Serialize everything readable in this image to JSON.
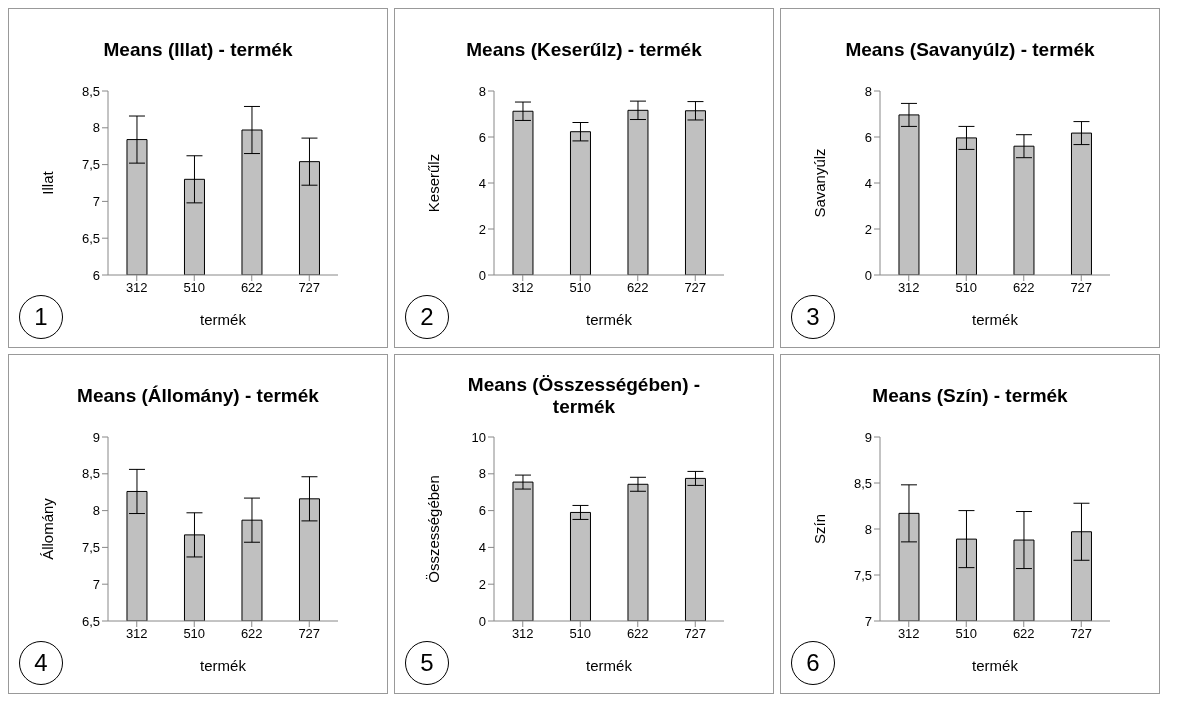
{
  "chart_data": [
    {
      "type": "bar",
      "title": "Means (Illat) - termék",
      "xlabel": "termék",
      "ylabel": "Illat",
      "categories": [
        "312",
        "510",
        "622",
        "727"
      ],
      "values": [
        7.84,
        7.3,
        7.97,
        7.54
      ],
      "errors": [
        0.32,
        0.32,
        0.32,
        0.32
      ],
      "color": "#c0c0c0",
      "ylim": [
        6,
        8.5
      ],
      "yticks": [
        6,
        {
          "value": 6.5,
          "label": "6,5"
        },
        7,
        {
          "value": 7.5,
          "label": "7,5"
        },
        8,
        {
          "value": 8.5,
          "label": "8,5"
        }
      ],
      "annotations": [
        "1"
      ]
    },
    {
      "type": "bar",
      "title": "Means (Keserűlz) - termék",
      "xlabel": "termék",
      "ylabel": "Keserűlz",
      "categories": [
        "312",
        "510",
        "622",
        "727"
      ],
      "values": [
        7.12,
        6.23,
        7.16,
        7.14
      ],
      "errors": [
        0.4,
        0.4,
        0.4,
        0.4
      ],
      "color": "#c0c0c0",
      "ylim": [
        0,
        8
      ],
      "yticks": [
        0,
        2,
        4,
        6,
        8
      ],
      "annotations": [
        "2"
      ]
    },
    {
      "type": "bar",
      "title": "Means (Savanyúlz) - termék",
      "xlabel": "termék",
      "ylabel": "Savanyúlz",
      "categories": [
        "312",
        "510",
        "622",
        "727"
      ],
      "values": [
        6.96,
        5.96,
        5.6,
        6.17
      ],
      "errors": [
        0.5,
        0.5,
        0.5,
        0.5
      ],
      "color": "#c0c0c0",
      "ylim": [
        0,
        8
      ],
      "yticks": [
        0,
        2,
        4,
        6,
        8
      ],
      "annotations": [
        "3"
      ]
    },
    {
      "type": "bar",
      "title": "Means (Állomány) - termék",
      "xlabel": "termék",
      "ylabel": "Állomány",
      "categories": [
        "312",
        "510",
        "622",
        "727"
      ],
      "values": [
        8.26,
        7.67,
        7.87,
        8.16
      ],
      "errors": [
        0.3,
        0.3,
        0.3,
        0.3
      ],
      "color": "#c0c0c0",
      "ylim": [
        6.5,
        9
      ],
      "yticks": [
        {
          "value": 6.5,
          "label": "6,5"
        },
        7,
        {
          "value": 7.5,
          "label": "7,5"
        },
        8,
        {
          "value": 8.5,
          "label": "8,5"
        },
        9
      ],
      "annotations": [
        "4"
      ]
    },
    {
      "type": "bar",
      "title": "Means (Összességében) - termék",
      "xlabel": "termék",
      "ylabel": "Összességében",
      "categories": [
        "312",
        "510",
        "622",
        "727"
      ],
      "values": [
        7.55,
        5.9,
        7.43,
        7.75
      ],
      "errors": [
        0.38,
        0.38,
        0.38,
        0.38
      ],
      "color": "#c0c0c0",
      "ylim": [
        0,
        10
      ],
      "yticks": [
        0,
        2,
        4,
        6,
        8,
        10
      ],
      "annotations": [
        "5"
      ]
    },
    {
      "type": "bar",
      "title": "Means (Szín) - termék",
      "xlabel": "termék",
      "ylabel": "Szín",
      "categories": [
        "312",
        "510",
        "622",
        "727"
      ],
      "values": [
        8.17,
        7.89,
        7.88,
        7.97
      ],
      "errors": [
        0.31,
        0.31,
        0.31,
        0.31
      ],
      "color": "#c0c0c0",
      "ylim": [
        7,
        9
      ],
      "yticks": [
        7,
        {
          "value": 7.5,
          "label": "7,5"
        },
        8,
        {
          "value": 8.5,
          "label": "8,5"
        },
        9
      ],
      "annotations": [
        "6"
      ]
    }
  ]
}
